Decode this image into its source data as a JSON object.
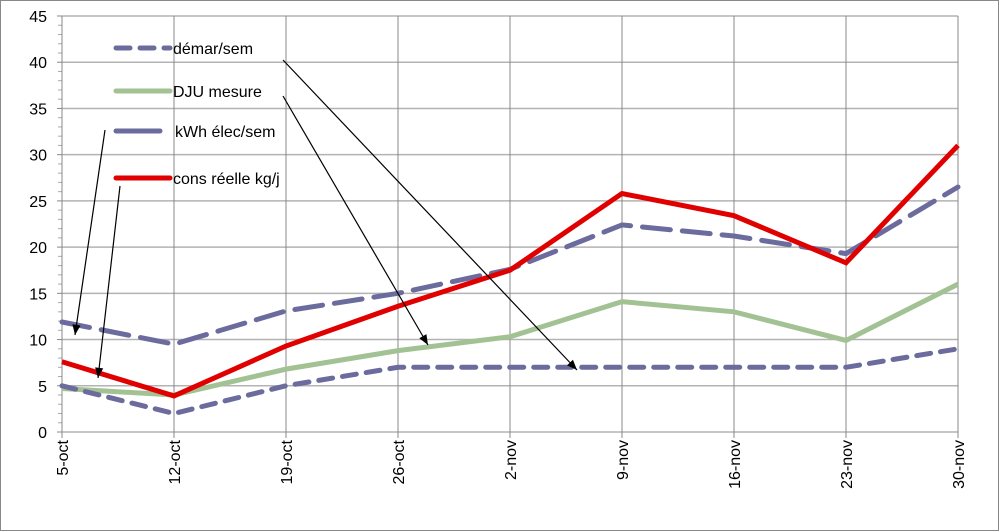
{
  "chart_data": {
    "type": "line",
    "title": "",
    "xlabel": "",
    "ylabel": "",
    "categories": [
      "5-oct",
      "12-oct",
      "19-oct",
      "26-oct",
      "2-nov",
      "9-nov",
      "16-nov",
      "23-nov",
      "30-nov"
    ],
    "ylim": [
      0,
      45
    ],
    "yticks": [
      0,
      5,
      10,
      15,
      20,
      25,
      30,
      35,
      40,
      45
    ],
    "grid": true,
    "legend_position": "top-left",
    "series": [
      {
        "name": "démar/sem",
        "color": "#6b6b9e",
        "style": "short-dash",
        "values": [
          5,
          2,
          5,
          7,
          7,
          7,
          7,
          7,
          9
        ]
      },
      {
        "name": "DJU mesure",
        "color": "#a3c293",
        "style": "solid",
        "values": [
          4.7,
          4,
          6.8,
          8.8,
          10.3,
          14.1,
          13,
          9.9,
          16
        ]
      },
      {
        "name": "kWh élec/sem",
        "color": "#6b6b9e",
        "style": "long-dash",
        "values": [
          11.9,
          9.5,
          13.1,
          15,
          17.6,
          22.4,
          21.2,
          19.3,
          26.5
        ]
      },
      {
        "name": "cons réelle kg/j",
        "color": "#e00000",
        "style": "solid",
        "values": [
          7.6,
          3.9,
          9.3,
          13.6,
          17.5,
          25.8,
          23.4,
          18.3,
          31
        ]
      }
    ]
  }
}
